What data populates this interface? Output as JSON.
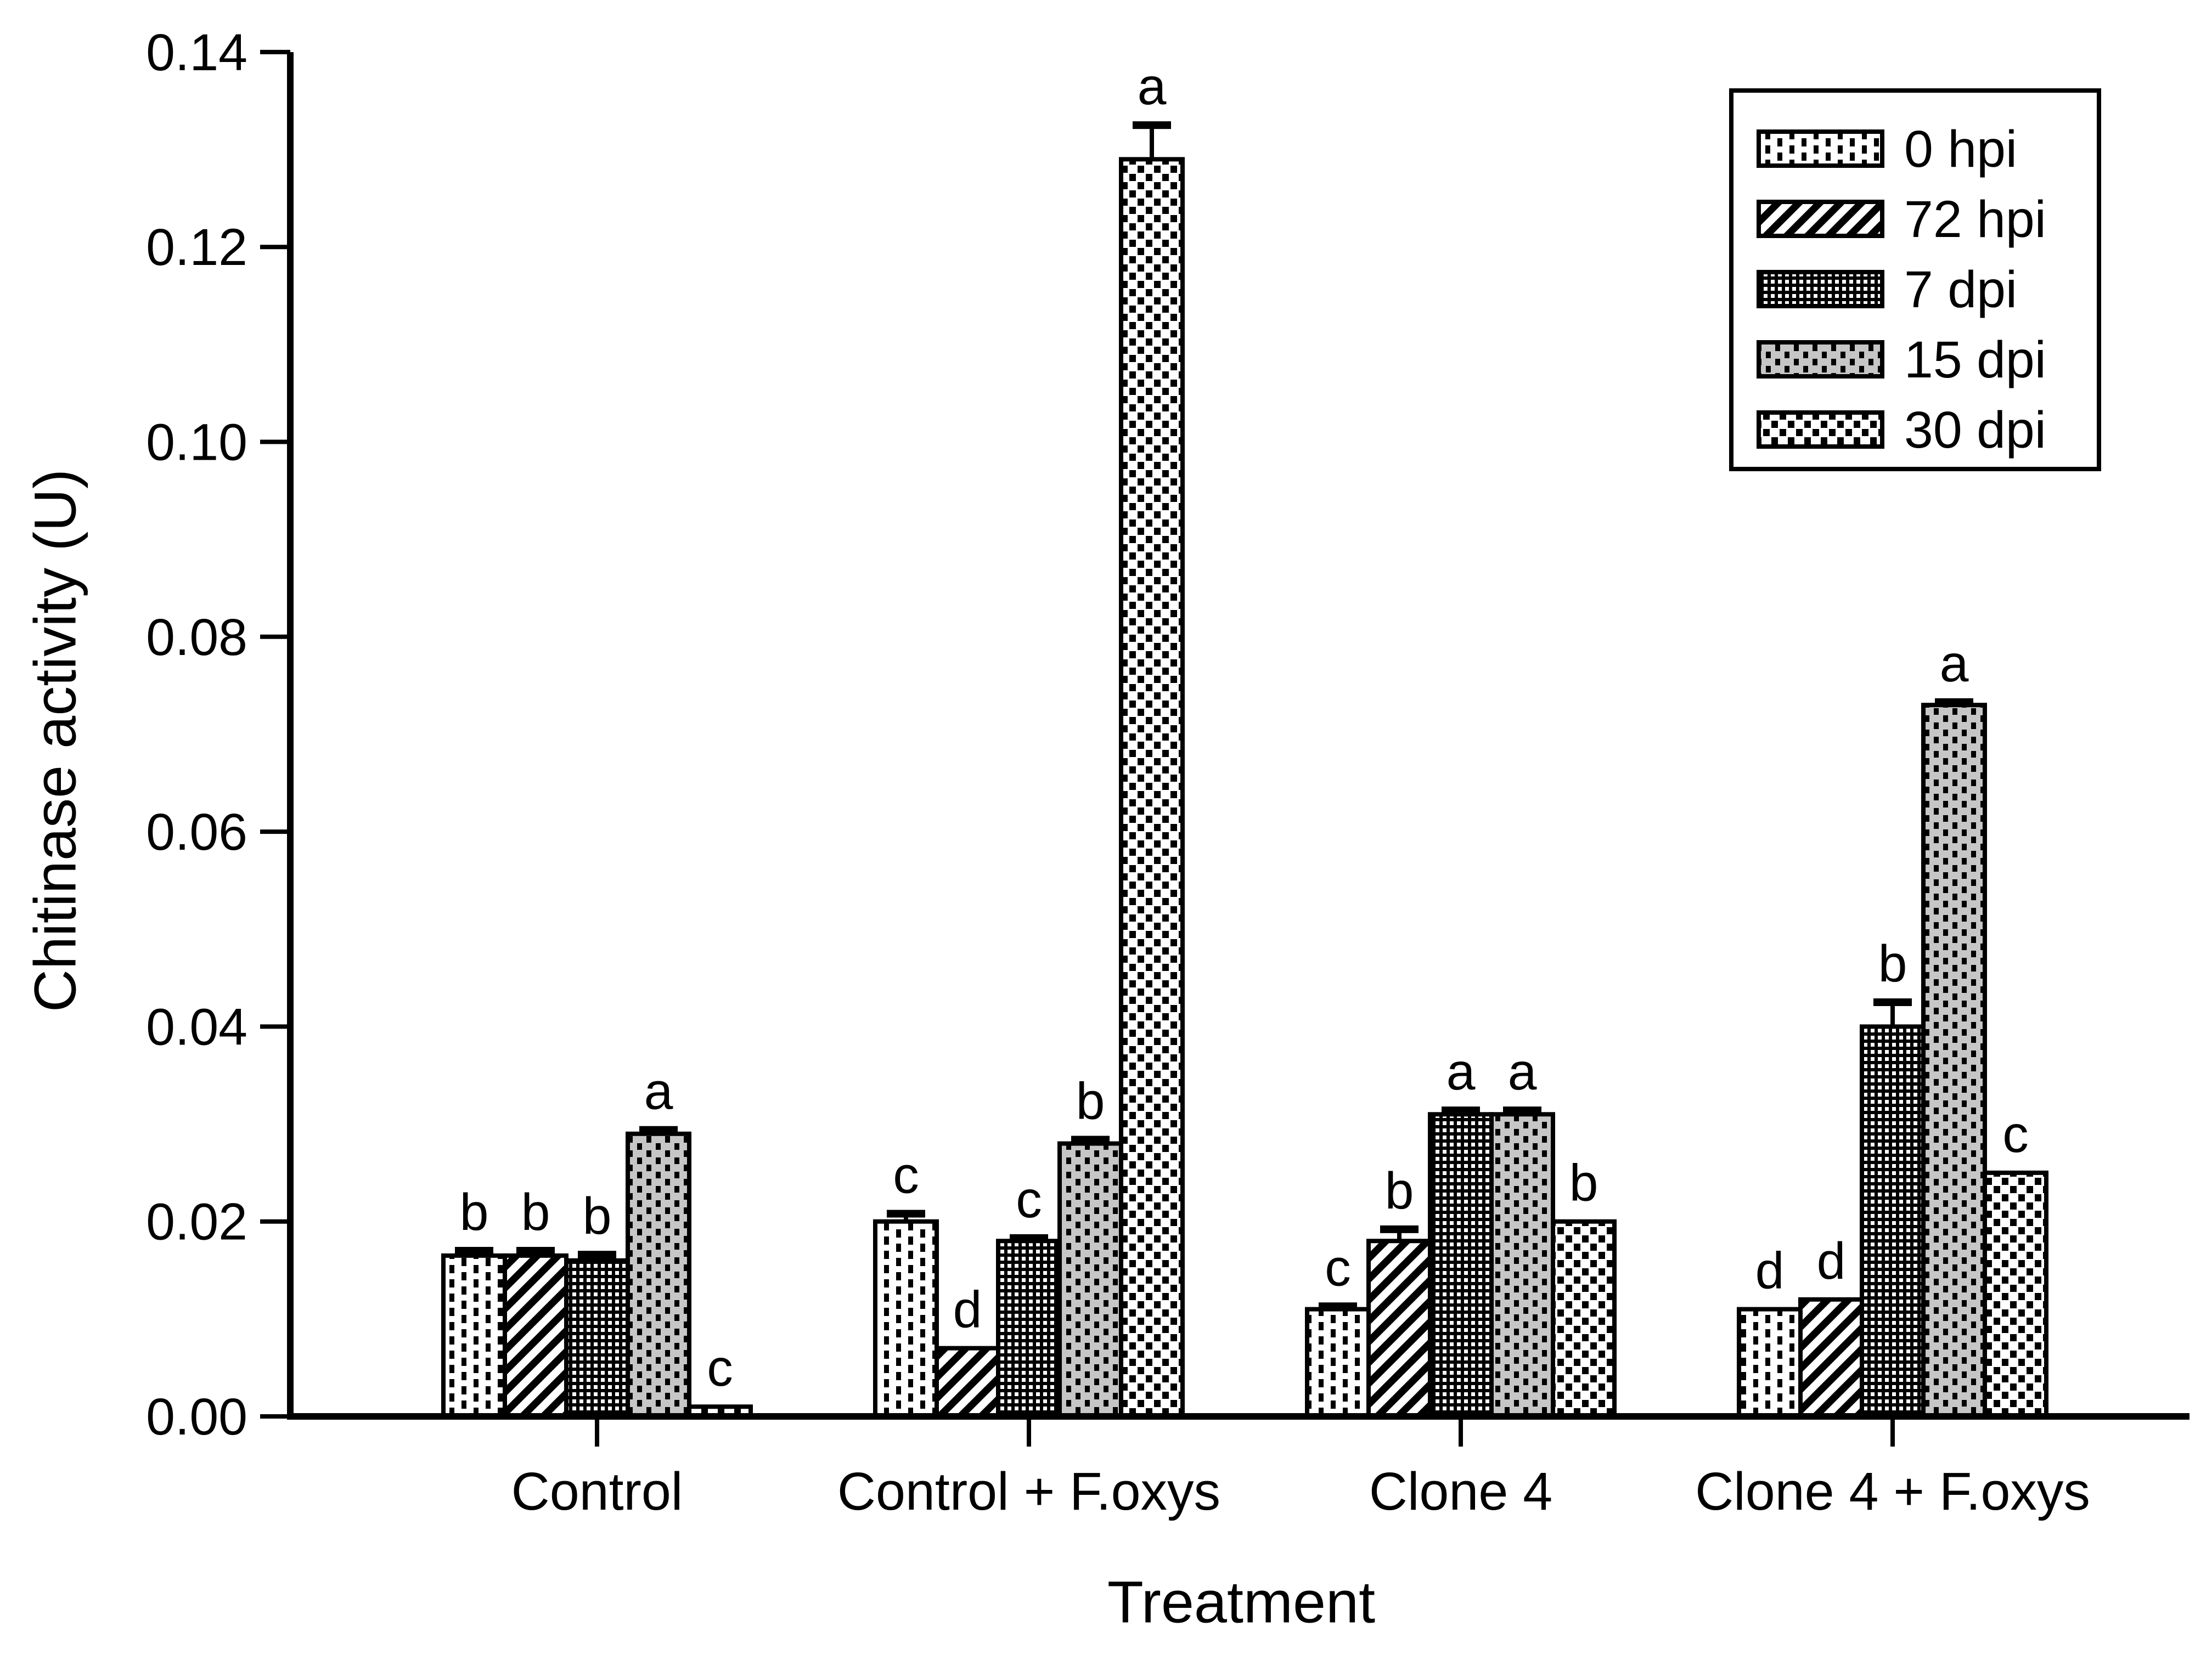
{
  "figure": {
    "background_color": "#ffffff",
    "foreground_color": "#000000",
    "gray_fill_color": "#c6c6c6"
  },
  "chart_data": {
    "type": "bar",
    "title": "",
    "xlabel": "Treatment",
    "ylabel": "Chitinase activity (U)",
    "ylim": [
      0.0,
      0.14
    ],
    "yticks": [
      0.0,
      0.02,
      0.04,
      0.06,
      0.08,
      0.1,
      0.12,
      0.14
    ],
    "ytick_decimals": 2,
    "grid": false,
    "legend_position": "upper-right",
    "categories": [
      "Control",
      "Control + F.oxys",
      "Clone 4",
      "Clone 4 + F.oxys"
    ],
    "series": [
      {
        "name": "0 hpi",
        "pattern": "pat-0hpi",
        "pattern_fg": "#000000",
        "pattern_bg": "#ffffff",
        "values": [
          0.0165,
          0.02,
          0.011,
          0.011
        ],
        "errors": [
          0.0005,
          0.0008,
          0.0003,
          0.0
        ],
        "letters": [
          "b",
          "c",
          "c",
          "d"
        ]
      },
      {
        "name": "72 hpi",
        "pattern": "pat-72hpi",
        "pattern_fg": "#000000",
        "pattern_bg": "#ffffff",
        "values": [
          0.0165,
          0.007,
          0.018,
          0.012
        ],
        "errors": [
          0.0005,
          0.0,
          0.0012,
          0.0
        ],
        "letters": [
          "b",
          "d",
          "b",
          "d"
        ]
      },
      {
        "name": "7 dpi",
        "pattern": "pat-7dpi",
        "pattern_fg": "#ffffff",
        "pattern_bg": "#000000",
        "values": [
          0.016,
          0.018,
          0.031,
          0.04
        ],
        "errors": [
          0.0006,
          0.0003,
          0.0004,
          0.0025
        ],
        "letters": [
          "b",
          "c",
          "a",
          "b"
        ]
      },
      {
        "name": "15 dpi",
        "pattern": "pat-15dpi",
        "pattern_fg": "#000000",
        "pattern_bg": "#c6c6c6",
        "values": [
          0.029,
          0.028,
          0.031,
          0.073
        ],
        "errors": [
          0.0004,
          0.0004,
          0.0004,
          0.0003
        ],
        "letters": [
          "a",
          "b",
          "a",
          "a"
        ]
      },
      {
        "name": "30 dpi",
        "pattern": "pat-30dpi",
        "pattern_fg": "#000000",
        "pattern_bg": "#ffffff",
        "values": [
          0.001,
          0.129,
          0.02,
          0.025
        ],
        "errors": [
          0.0,
          0.0035,
          0.0,
          0.0
        ],
        "letters": [
          "c",
          "a",
          "b",
          "c"
        ]
      }
    ],
    "legend_entries": [
      "0 hpi",
      "72 hpi",
      "7 dpi",
      "15 dpi",
      "30 dpi"
    ]
  }
}
